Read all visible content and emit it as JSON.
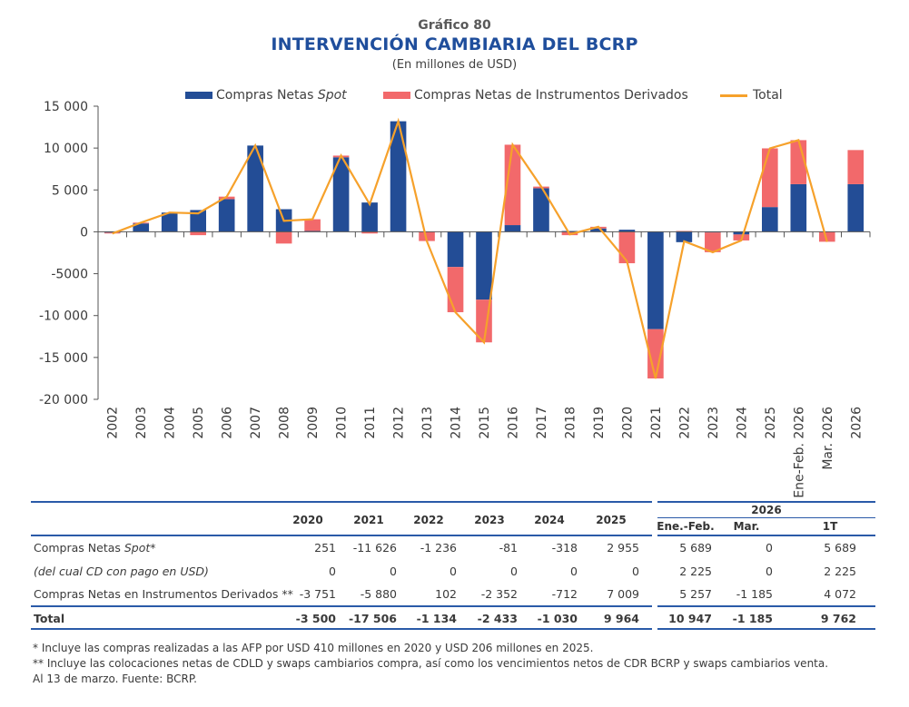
{
  "header": {
    "kicker": "Gráfico 80",
    "title": "INTERVENCIÓN CAMBIARIA DEL BCRP",
    "subtitle": "(En millones de USD)"
  },
  "colors": {
    "spot": "#234d96",
    "derivatives": "#f2696b",
    "total": "#f6a12b",
    "rule": "#2a5aa8",
    "title": "#1f4e9c"
  },
  "chart_data": {
    "type": "bar",
    "stacked": true,
    "title": "INTERVENCIÓN CAMBIARIA DEL BCRP",
    "subtitle": "(En millones de USD)",
    "xlabel": "",
    "ylabel": "",
    "ylim": [
      -20000,
      15000
    ],
    "yticks": [
      15000,
      10000,
      5000,
      0,
      -5000,
      -10000,
      -15000,
      -20000
    ],
    "ytick_labels": [
      "15 000",
      "10 000",
      "5 000",
      "0",
      "-5000",
      "-10 000",
      "-15 000",
      "-20 000"
    ],
    "grid": false,
    "legend_position": "top",
    "categories": [
      "2002",
      "2003",
      "2004",
      "2005",
      "2006",
      "2007",
      "2008",
      "2009",
      "2010",
      "2011",
      "2012",
      "2013",
      "2014",
      "2015",
      "2016",
      "2017",
      "2018",
      "2019",
      "2020",
      "2021",
      "2022",
      "2023",
      "2024",
      "2025",
      "Ene-Feb. 2026",
      "Mar. 2026",
      "2026"
    ],
    "series": [
      {
        "name": "Compras Netas Spot",
        "type": "bar",
        "values": [
          -100,
          1000,
          2300,
          2600,
          3900,
          10300,
          2700,
          100,
          8900,
          3500,
          13200,
          0,
          -4200,
          -8100,
          800,
          5200,
          100,
          400,
          251,
          -11626,
          -1236,
          -81,
          -318,
          2955,
          5689,
          0,
          5689
        ]
      },
      {
        "name": "Compras Netas de Instrumentos Derivados",
        "type": "bar",
        "values": [
          -100,
          100,
          0,
          -400,
          300,
          0,
          -1400,
          1400,
          200,
          -200,
          0,
          -1100,
          -5400,
          -5100,
          9600,
          200,
          -400,
          200,
          -3751,
          -5880,
          102,
          -2352,
          -712,
          7009,
          5257,
          -1185,
          4072
        ]
      },
      {
        "name": "Total",
        "type": "line",
        "values": [
          -200,
          1100,
          2300,
          2200,
          4200,
          10300,
          1300,
          1500,
          9100,
          3300,
          13200,
          -1100,
          -9600,
          -13200,
          10400,
          5400,
          -300,
          600,
          -3500,
          -17506,
          -1134,
          -2433,
          -1030,
          9964,
          10947,
          -1185,
          null
        ]
      }
    ]
  },
  "legend": [
    {
      "label_main": "Compras Netas ",
      "label_italic": "Spot",
      "kind": "bar",
      "color": "#234d96"
    },
    {
      "label_main": "Compras Netas de Instrumentos Derivados",
      "label_italic": "",
      "kind": "bar",
      "color": "#f2696b"
    },
    {
      "label_main": "Total",
      "label_italic": "",
      "kind": "line",
      "color": "#f6a12b"
    }
  ],
  "table": {
    "group_header": "2026",
    "columns": [
      "2020",
      "2021",
      "2022",
      "2023",
      "2024",
      "2025",
      "Ene.-Feb.",
      "Mar.",
      "1T"
    ],
    "rows": [
      {
        "label": "Compras Netas ",
        "label_italic": "Spot*",
        "italic": false,
        "bold": false,
        "values": [
          "251",
          "-11 626",
          "-1 236",
          "-81",
          "-318",
          "2 955",
          "5 689",
          "0",
          "5 689"
        ]
      },
      {
        "label": "",
        "label_italic": "(del cual CD con pago en USD)",
        "italic": true,
        "bold": false,
        "values": [
          "0",
          "0",
          "0",
          "0",
          "0",
          "0",
          "2 225",
          "0",
          "2 225"
        ]
      },
      {
        "label": "Compras Netas en Instrumentos Derivados **",
        "label_italic": "",
        "italic": false,
        "bold": false,
        "values": [
          "-3 751",
          "-5 880",
          "102",
          "-2 352",
          "-712",
          "7 009",
          "5 257",
          "-1 185",
          "4 072"
        ]
      },
      {
        "label": "Total",
        "label_italic": "",
        "italic": false,
        "bold": true,
        "values": [
          "-3 500",
          "-17 506",
          "-1 134",
          "-2 433",
          "-1 030",
          "9 964",
          "10 947",
          "-1 185",
          "9 762"
        ]
      }
    ]
  },
  "notes": [
    "* Incluye las compras realizadas a las AFP por USD 410 millones en 2020 y USD 206 millones en 2025.",
    "** Incluye las colocaciones netas de CDLD y swaps cambiarios compra, así como los vencimientos netos de CDR BCRP y swaps cambiarios venta.",
    "Al 13 de marzo. Fuente: BCRP."
  ]
}
